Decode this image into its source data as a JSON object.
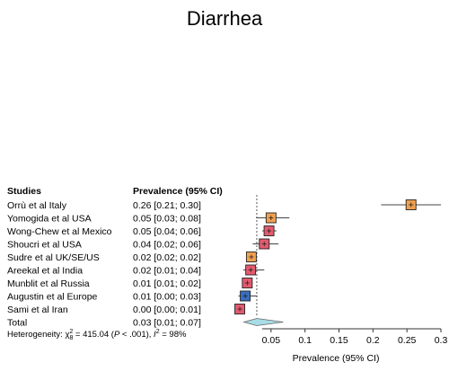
{
  "chart_data": {
    "type": "forest",
    "title": "Diarrhea",
    "headers": {
      "studies": "Studies",
      "estimate": "Prevalence (95% CI)"
    },
    "studies": [
      {
        "name": "Orrù et al Italy",
        "ci_text": "0.26 [0.21; 0.30]",
        "est": 0.256,
        "lo": 0.212,
        "hi": 0.3,
        "color": "#f0a050"
      },
      {
        "name": "Yomogida et al USA",
        "ci_text": "0.05 [0.03; 0.08]",
        "est": 0.05,
        "lo": 0.028,
        "hi": 0.077,
        "color": "#f0a050"
      },
      {
        "name": "Wong-Chew et al Mexico",
        "ci_text": "0.05 [0.04; 0.06]",
        "est": 0.047,
        "lo": 0.037,
        "hi": 0.058,
        "color": "#e35a6e"
      },
      {
        "name": "Shoucri et al USA",
        "ci_text": "0.04 [0.02; 0.06]",
        "est": 0.04,
        "lo": 0.023,
        "hi": 0.061,
        "color": "#e35a6e"
      },
      {
        "name": "Sudre et al UK/SE/US",
        "ci_text": "0.02 [0.02; 0.02]",
        "est": 0.021,
        "lo": 0.019,
        "hi": 0.024,
        "color": "#f0a050"
      },
      {
        "name": "Areekal et al India",
        "ci_text": "0.02 [0.01; 0.04]",
        "est": 0.02,
        "lo": 0.009,
        "hi": 0.04,
        "color": "#e35a6e"
      },
      {
        "name": "Munblit et al Russia",
        "ci_text": "0.01 [0.01; 0.02]",
        "est": 0.015,
        "lo": 0.009,
        "hi": 0.023,
        "color": "#e35a6e"
      },
      {
        "name": "Augustin et al Europe",
        "ci_text": "0.01 [0.00; 0.03]",
        "est": 0.012,
        "lo": 0.002,
        "hi": 0.03,
        "color": "#3a6fbf"
      },
      {
        "name": "Sami et al Iran",
        "ci_text": "0.00 [0.00; 0.01]",
        "est": 0.004,
        "lo": 0.0,
        "hi": 0.01,
        "color": "#e35a6e"
      }
    ],
    "total": {
      "name": "Total",
      "ci_text": "0.03 [0.01; 0.07]",
      "est": 0.029,
      "lo": 0.01,
      "hi": 0.068,
      "color": "#a8dce6"
    },
    "heterogeneity": {
      "prefix": "Heterogeneity: ",
      "chi": "χ",
      "chi_sup": "2",
      "chi_sub": "8",
      "chi_value": " = 415.04 (",
      "p_label": "P",
      "p_value": " < .001), ",
      "i_label": "I",
      "i_sup": "2",
      "i_value": " = 98%"
    },
    "xaxis": {
      "label": "Prevalence (95% CI)",
      "range": [
        0,
        0.3
      ],
      "ticks": [
        {
          "value": 0.05,
          "label": "0.05"
        },
        {
          "value": 0.1,
          "label": "0.1"
        },
        {
          "value": 0.15,
          "label": "0.15"
        },
        {
          "value": 0.2,
          "label": "0.2"
        },
        {
          "value": 0.25,
          "label": "0.25"
        },
        {
          "value": 0.3,
          "label": "0.3"
        }
      ]
    },
    "reference_line": 0.029,
    "grid": false
  }
}
